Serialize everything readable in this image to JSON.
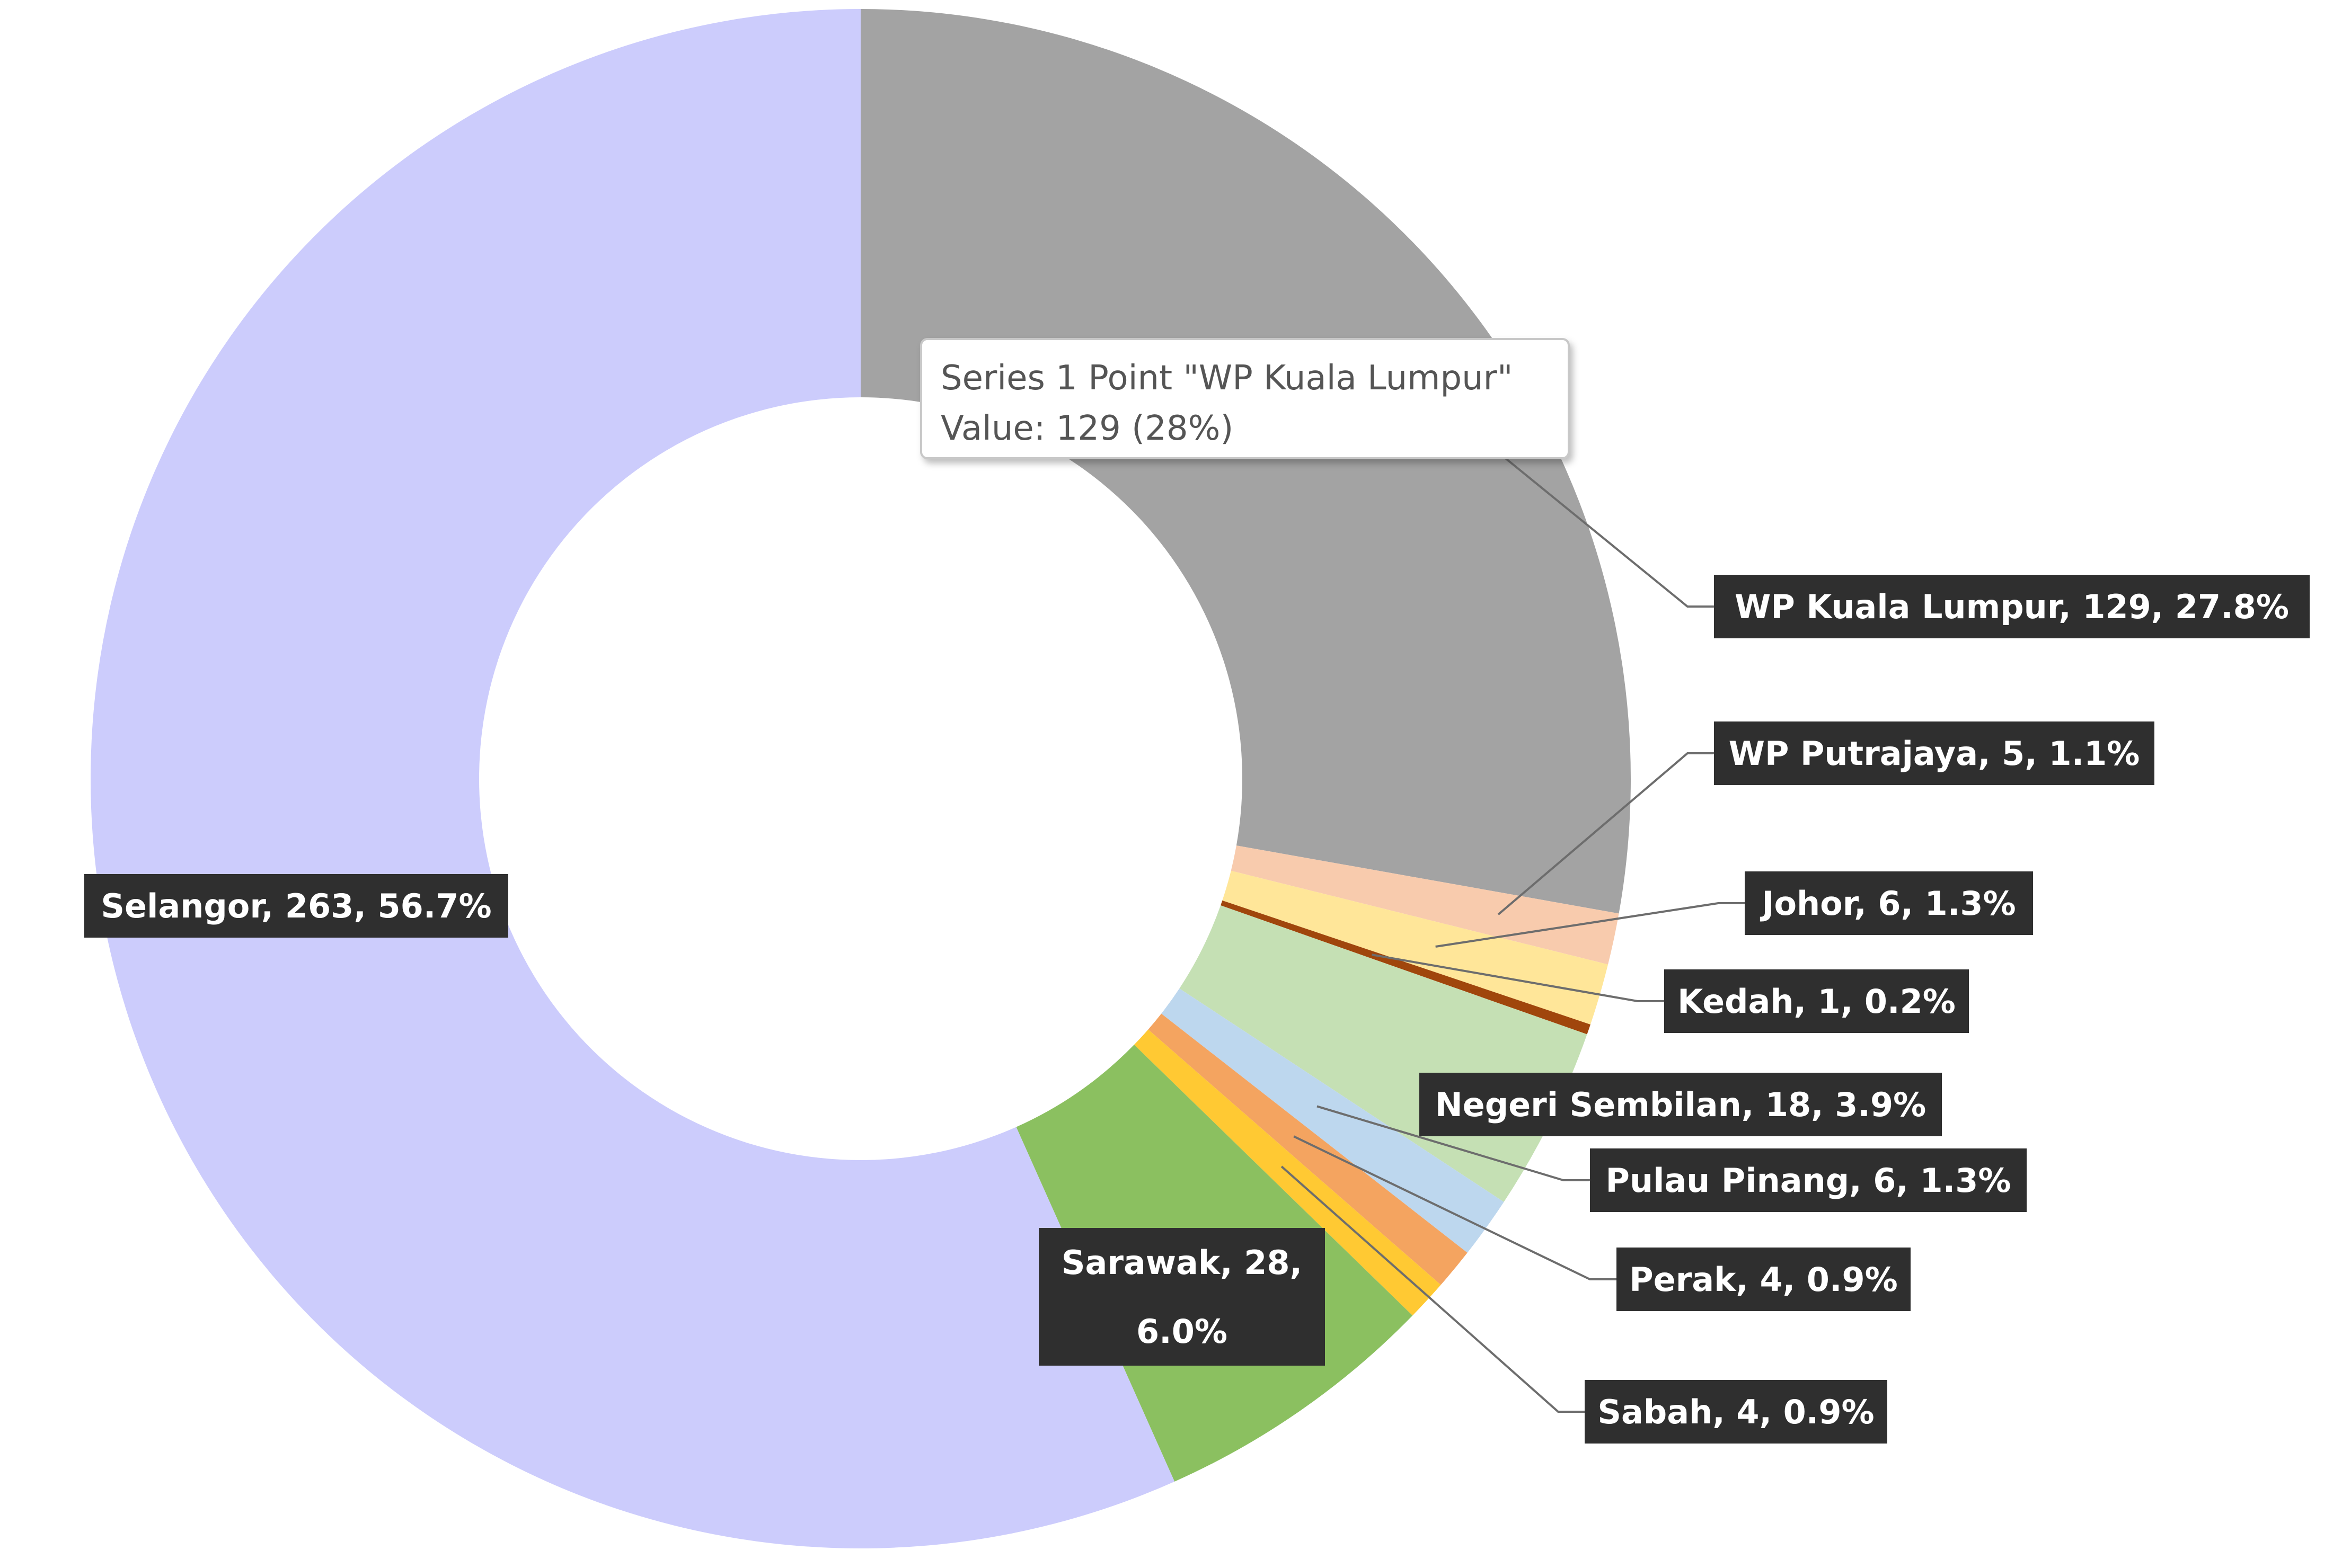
{
  "chart_data": {
    "type": "pie",
    "style": "donut",
    "series": [
      {
        "name": "Series 1",
        "categories": [
          "WP Kuala Lumpur",
          "WP Putrajaya",
          "Johor",
          "Kedah",
          "Negeri Sembilan",
          "Pulau Pinang",
          "Perak",
          "Sabah",
          "Sarawak",
          "Selangor"
        ],
        "values": [
          129,
          5,
          6,
          1,
          18,
          6,
          4,
          4,
          28,
          263
        ],
        "data_labels": [
          "WP Kuala Lumpur, 129, 27.8%",
          "WP Putrajaya, 5, 1.1%",
          "Johor, 6, 1.3%",
          "Kedah, 1, 0.2%",
          "Negeri Sembilan, 18, 3.9%",
          "Pulau Pinang, 6, 1.3%",
          "Perak, 4, 0.9%",
          "Sabah, 4, 0.9%",
          "Sarawak, 28, 6.0%",
          "Selangor, 263, 56.7%"
        ],
        "colors": [
          "#a3a3a3",
          "#f8cbad",
          "#ffe699",
          "#a0460c",
          "#c5e0b4",
          "#bdd7ee",
          "#f4a460",
          "#ffc933",
          "#8bc060",
          "#ccccfc"
        ]
      }
    ],
    "tooltip": {
      "line1": "Series 1 Point \"WP Kuala Lumpur\"",
      "line2": "Value: 129 (28%)"
    },
    "label_background": "#2f2f2f",
    "legend": "none"
  }
}
